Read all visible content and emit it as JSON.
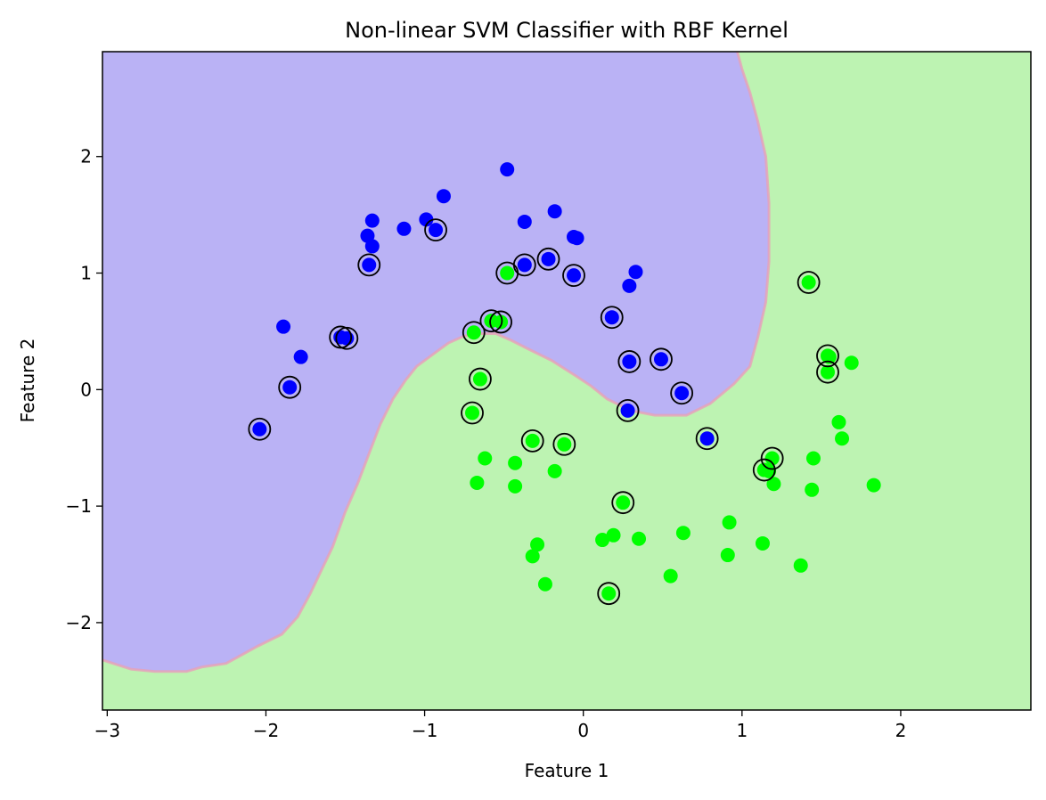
{
  "chart_data": {
    "type": "scatter",
    "title": "Non-linear SVM Classifier with RBF Kernel",
    "xlabel": "Feature 1",
    "ylabel": "Feature 2",
    "xlim": [
      -3.03,
      2.82
    ],
    "ylim": [
      -2.75,
      2.9
    ],
    "xticks": [
      -3,
      -2,
      -1,
      0,
      1,
      2
    ],
    "yticks": [
      -2,
      -1,
      0,
      1,
      2
    ],
    "grid": false,
    "colors": {
      "class_0": "#0000ff",
      "class_1": "#00ff00",
      "region_0": "#bab2f5",
      "region_1": "#bdf3b2",
      "support_vector_ring": "#000000"
    },
    "decision_boundary": [
      [
        -3.03,
        -2.32
      ],
      [
        -2.85,
        -2.4
      ],
      [
        -2.7,
        -2.42
      ],
      [
        -2.5,
        -2.42
      ],
      [
        -2.4,
        -2.38
      ],
      [
        -2.25,
        -2.35
      ],
      [
        -2.05,
        -2.2
      ],
      [
        -1.9,
        -2.1
      ],
      [
        -1.8,
        -1.95
      ],
      [
        -1.72,
        -1.75
      ],
      [
        -1.65,
        -1.55
      ],
      [
        -1.58,
        -1.35
      ],
      [
        -1.5,
        -1.05
      ],
      [
        -1.42,
        -0.8
      ],
      [
        -1.35,
        -0.55
      ],
      [
        -1.28,
        -0.3
      ],
      [
        -1.2,
        -0.08
      ],
      [
        -1.12,
        0.08
      ],
      [
        -1.05,
        0.2
      ],
      [
        -0.95,
        0.3
      ],
      [
        -0.85,
        0.4
      ],
      [
        -0.75,
        0.46
      ],
      [
        -0.65,
        0.48
      ],
      [
        -0.55,
        0.48
      ],
      [
        -0.45,
        0.42
      ],
      [
        -0.35,
        0.35
      ],
      [
        -0.2,
        0.25
      ],
      [
        -0.05,
        0.12
      ],
      [
        0.05,
        0.03
      ],
      [
        0.15,
        -0.08
      ],
      [
        0.3,
        -0.18
      ],
      [
        0.45,
        -0.22
      ],
      [
        0.65,
        -0.22
      ],
      [
        0.8,
        -0.12
      ],
      [
        0.95,
        0.05
      ],
      [
        1.05,
        0.2
      ],
      [
        1.1,
        0.45
      ],
      [
        1.15,
        0.75
      ],
      [
        1.17,
        1.1
      ],
      [
        1.17,
        1.6
      ],
      [
        1.15,
        2.0
      ],
      [
        1.1,
        2.3
      ],
      [
        1.05,
        2.55
      ],
      [
        1.0,
        2.75
      ],
      [
        0.97,
        2.9
      ]
    ],
    "series": [
      {
        "class": 0,
        "points": [
          [
            -0.48,
            1.89
          ],
          [
            -0.88,
            1.66
          ],
          [
            -0.99,
            1.46
          ],
          [
            -1.13,
            1.38
          ],
          [
            -1.33,
            1.45
          ],
          [
            -1.36,
            1.32
          ],
          [
            -1.33,
            1.23
          ],
          [
            -1.35,
            1.07
          ],
          [
            -0.93,
            1.37
          ],
          [
            -0.37,
            1.44
          ],
          [
            -0.18,
            1.53
          ],
          [
            -0.37,
            1.07
          ],
          [
            -0.22,
            1.12
          ],
          [
            -0.06,
            1.31
          ],
          [
            -0.04,
            1.3
          ],
          [
            -0.06,
            0.98
          ],
          [
            0.33,
            1.01
          ],
          [
            0.29,
            0.89
          ],
          [
            0.18,
            0.62
          ],
          [
            -1.89,
            0.54
          ],
          [
            -1.53,
            0.45
          ],
          [
            -1.49,
            0.44
          ],
          [
            -1.78,
            0.28
          ],
          [
            -1.85,
            0.02
          ],
          [
            -2.04,
            -0.34
          ],
          [
            0.29,
            0.24
          ],
          [
            0.49,
            0.26
          ],
          [
            0.62,
            -0.03
          ],
          [
            0.28,
            -0.18
          ],
          [
            0.78,
            -0.42
          ]
        ]
      },
      {
        "class": 1,
        "points": [
          [
            -0.48,
            1.0
          ],
          [
            -0.58,
            0.59
          ],
          [
            -0.52,
            0.58
          ],
          [
            -0.69,
            0.49
          ],
          [
            -0.65,
            0.09
          ],
          [
            -0.7,
            -0.2
          ],
          [
            -0.32,
            -0.44
          ],
          [
            -0.12,
            -0.47
          ],
          [
            -0.62,
            -0.59
          ],
          [
            -0.43,
            -0.63
          ],
          [
            -0.67,
            -0.8
          ],
          [
            -0.43,
            -0.83
          ],
          [
            -0.18,
            -0.7
          ],
          [
            1.42,
            0.92
          ],
          [
            1.54,
            0.29
          ],
          [
            1.55,
            0.28
          ],
          [
            1.69,
            0.23
          ],
          [
            1.54,
            0.15
          ],
          [
            1.61,
            -0.28
          ],
          [
            1.63,
            -0.42
          ],
          [
            1.45,
            -0.59
          ],
          [
            1.19,
            -0.59
          ],
          [
            1.17,
            -0.7
          ],
          [
            1.14,
            -0.69
          ],
          [
            1.2,
            -0.81
          ],
          [
            1.44,
            -0.86
          ],
          [
            1.83,
            -0.82
          ],
          [
            0.25,
            -0.97
          ],
          [
            0.92,
            -1.14
          ],
          [
            0.63,
            -1.23
          ],
          [
            0.19,
            -1.25
          ],
          [
            0.12,
            -1.29
          ],
          [
            0.35,
            -1.28
          ],
          [
            1.13,
            -1.32
          ],
          [
            -0.29,
            -1.33
          ],
          [
            -0.32,
            -1.43
          ],
          [
            0.91,
            -1.42
          ],
          [
            1.37,
            -1.51
          ],
          [
            0.55,
            -1.6
          ],
          [
            -0.24,
            -1.67
          ],
          [
            0.16,
            -1.75
          ]
        ]
      }
    ],
    "support_vectors": [
      [
        -1.35,
        1.07
      ],
      [
        -0.93,
        1.37
      ],
      [
        -0.48,
        1.0
      ],
      [
        -0.37,
        1.07
      ],
      [
        -0.22,
        1.12
      ],
      [
        -0.06,
        0.98
      ],
      [
        0.18,
        0.62
      ],
      [
        -0.58,
        0.59
      ],
      [
        -0.52,
        0.58
      ],
      [
        -0.69,
        0.49
      ],
      [
        -1.53,
        0.45
      ],
      [
        -1.49,
        0.44
      ],
      [
        -1.85,
        0.02
      ],
      [
        -2.04,
        -0.34
      ],
      [
        -0.65,
        0.09
      ],
      [
        -0.7,
        -0.2
      ],
      [
        -0.32,
        -0.44
      ],
      [
        -0.12,
        -0.47
      ],
      [
        0.29,
        0.24
      ],
      [
        0.49,
        0.26
      ],
      [
        0.62,
        -0.03
      ],
      [
        0.28,
        -0.18
      ],
      [
        0.78,
        -0.42
      ],
      [
        1.42,
        0.92
      ],
      [
        1.54,
        0.29
      ],
      [
        1.54,
        0.15
      ],
      [
        1.19,
        -0.59
      ],
      [
        1.14,
        -0.69
      ],
      [
        0.25,
        -0.97
      ],
      [
        0.16,
        -1.75
      ]
    ]
  }
}
